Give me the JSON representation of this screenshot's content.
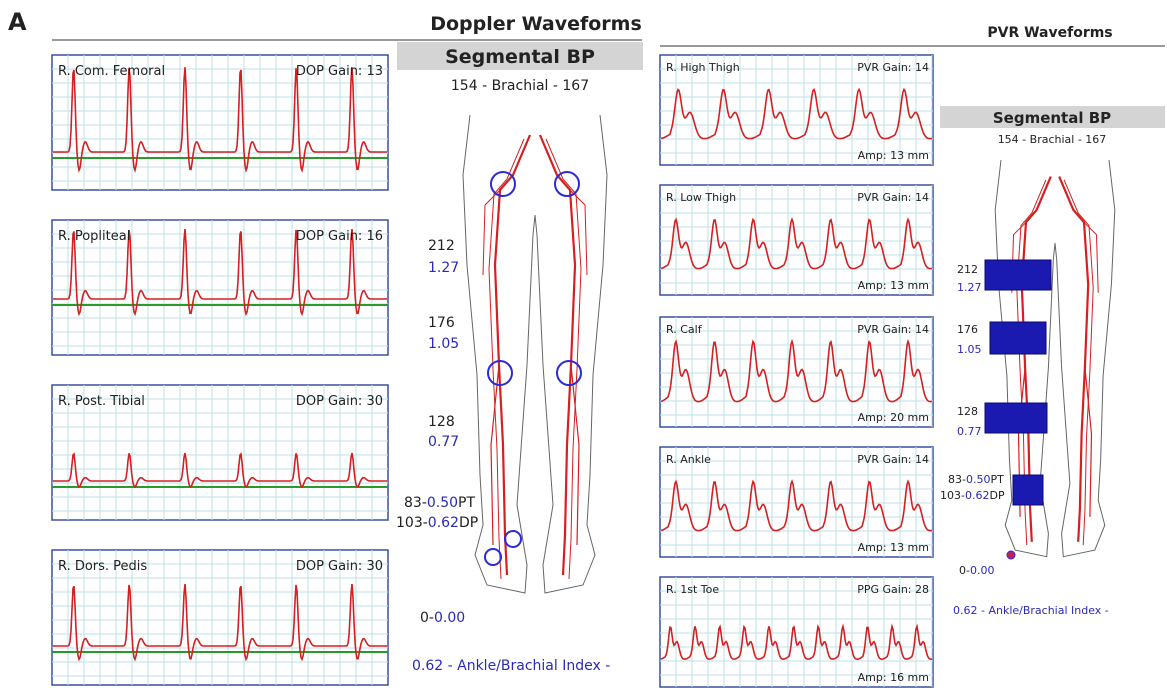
{
  "figure_label": "A",
  "doppler": {
    "title": "Doppler Waveforms",
    "segmental_bp": "Segmental BP",
    "brachial": "154 - Brachial - 167",
    "panels": [
      {
        "label": "R. Com. Femoral",
        "gain": "DOP Gain: 13"
      },
      {
        "label": "R. Popliteal",
        "gain": "DOP Gain: 16"
      },
      {
        "label": "R. Post. Tibial",
        "gain": "DOP Gain: 30"
      },
      {
        "label": "R. Dors. Pedis",
        "gain": "DOP Gain: 30"
      }
    ],
    "pressures": [
      {
        "pressure": "212",
        "index": "1.27"
      },
      {
        "pressure": "176",
        "index": "1.05"
      },
      {
        "pressure": "128",
        "index": "0.77"
      }
    ],
    "ankle": [
      {
        "pressure": "83-",
        "index": "0.50",
        "site": "PT"
      },
      {
        "pressure": "103-",
        "index": "0.62",
        "site": "DP"
      }
    ],
    "toe": {
      "pressure": "0-",
      "index": "0.00"
    },
    "abi": "0.62  - Ankle/Brachial Index -"
  },
  "pvr": {
    "title": "PVR Waveforms",
    "segmental_bp": "Segmental BP",
    "brachial": "154 - Brachial - 167",
    "panels": [
      {
        "label": "R. High Thigh",
        "gain": "PVR Gain: 14",
        "amp": "Amp: 13 mm"
      },
      {
        "label": "R. Low Thigh",
        "gain": "PVR Gain: 14",
        "amp": "Amp: 13 mm"
      },
      {
        "label": "R. Calf",
        "gain": "PVR Gain: 14",
        "amp": "Amp: 20 mm"
      },
      {
        "label": "R. Ankle",
        "gain": "PVR Gain: 14",
        "amp": "Amp: 13 mm"
      },
      {
        "label": "R. 1st Toe",
        "gain": "PPG Gain: 28",
        "amp": "Amp: 16 mm"
      }
    ],
    "pressures": [
      {
        "pressure": "212",
        "index": "1.27"
      },
      {
        "pressure": "176",
        "index": "1.05"
      },
      {
        "pressure": "128",
        "index": "0.77"
      }
    ],
    "ankle": [
      {
        "pressure": "83-",
        "index": "0.50",
        "site": "PT"
      },
      {
        "pressure": "103-",
        "index": "0.62",
        "site": "DP"
      }
    ],
    "toe": {
      "pressure": "0-",
      "index": "0.00"
    },
    "abi": "0.62  - Ankle/Brachial Index -"
  }
}
